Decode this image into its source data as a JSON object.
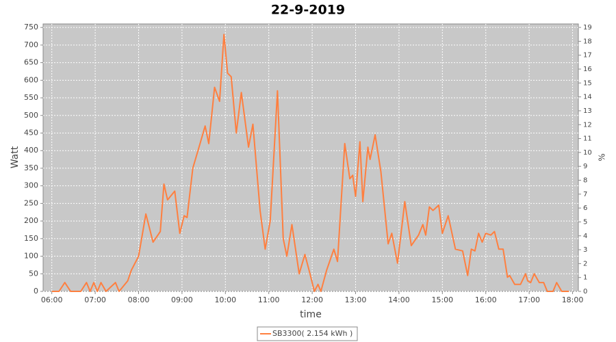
{
  "chart_data": {
    "type": "line",
    "title": "22-9-2019",
    "x_label": "time",
    "y_label": "Watt",
    "y2_label": "%",
    "x": [
      "06:00",
      "06:10",
      "06:18",
      "06:26",
      "06:40",
      "06:48",
      "06:53",
      "06:58",
      "07:03",
      "07:08",
      "07:15",
      "07:28",
      "07:33",
      "07:45",
      "07:50",
      "08:00",
      "08:10",
      "08:20",
      "08:30",
      "08:35",
      "08:40",
      "08:50",
      "08:57",
      "09:03",
      "09:07",
      "09:15",
      "09:25",
      "09:32",
      "09:37",
      "09:45",
      "09:52",
      "09:58",
      "10:03",
      "10:08",
      "10:15",
      "10:22",
      "10:32",
      "10:38",
      "10:48",
      "10:55",
      "11:02",
      "11:12",
      "11:20",
      "11:25",
      "11:32",
      "11:42",
      "11:50",
      "11:57",
      "12:03",
      "12:08",
      "12:12",
      "12:20",
      "12:30",
      "12:35",
      "12:45",
      "12:52",
      "12:56",
      "13:00",
      "13:06",
      "13:10",
      "13:17",
      "13:20",
      "13:27",
      "13:35",
      "13:45",
      "13:50",
      "13:58",
      "14:08",
      "14:17",
      "14:27",
      "14:33",
      "14:37",
      "14:42",
      "14:47",
      "14:55",
      "15:00",
      "15:08",
      "15:18",
      "15:28",
      "15:35",
      "15:40",
      "15:45",
      "15:50",
      "15:55",
      "16:00",
      "16:07",
      "16:12",
      "16:18",
      "16:24",
      "16:30",
      "16:33",
      "16:40",
      "16:48",
      "16:55",
      "16:58",
      "17:02",
      "17:07",
      "17:14",
      "17:20",
      "17:25",
      "17:33",
      "17:38",
      "17:45",
      "17:55"
    ],
    "series": [
      {
        "name": "SB3300( 2.154 kWh )",
        "color": "#ff7f3f",
        "values": [
          0,
          0,
          25,
          0,
          0,
          25,
          0,
          25,
          0,
          25,
          0,
          25,
          0,
          30,
          60,
          100,
          220,
          140,
          170,
          305,
          260,
          285,
          165,
          215,
          210,
          350,
          420,
          470,
          420,
          580,
          540,
          730,
          620,
          610,
          450,
          565,
          410,
          475,
          230,
          120,
          200,
          570,
          150,
          100,
          190,
          50,
          105,
          50,
          0,
          20,
          0,
          60,
          120,
          85,
          420,
          320,
          330,
          270,
          425,
          255,
          410,
          375,
          445,
          340,
          135,
          165,
          80,
          255,
          130,
          160,
          190,
          160,
          240,
          230,
          245,
          165,
          215,
          120,
          115,
          45,
          120,
          115,
          165,
          140,
          165,
          160,
          170,
          120,
          120,
          40,
          45,
          20,
          20,
          50,
          30,
          25,
          50,
          25,
          25,
          0,
          0,
          25,
          0,
          0
        ]
      }
    ],
    "xlim": [
      "05:48",
      "18:08"
    ],
    "xticks": [
      "06:00",
      "07:00",
      "08:00",
      "09:00",
      "10:00",
      "11:00",
      "12:00",
      "13:00",
      "14:00",
      "15:00",
      "16:00",
      "17:00",
      "18:00"
    ],
    "ylim": [
      0,
      760
    ],
    "yticks": [
      0,
      50,
      100,
      150,
      200,
      250,
      300,
      350,
      400,
      450,
      500,
      550,
      600,
      650,
      700,
      750
    ],
    "y2lim": [
      0,
      19.25
    ],
    "y2ticks": [
      0,
      1,
      2,
      3,
      4,
      5,
      6,
      7,
      8,
      9,
      10,
      11,
      12,
      13,
      14,
      15,
      16,
      17,
      18,
      19
    ],
    "grid": true,
    "legend": "bottom"
  }
}
